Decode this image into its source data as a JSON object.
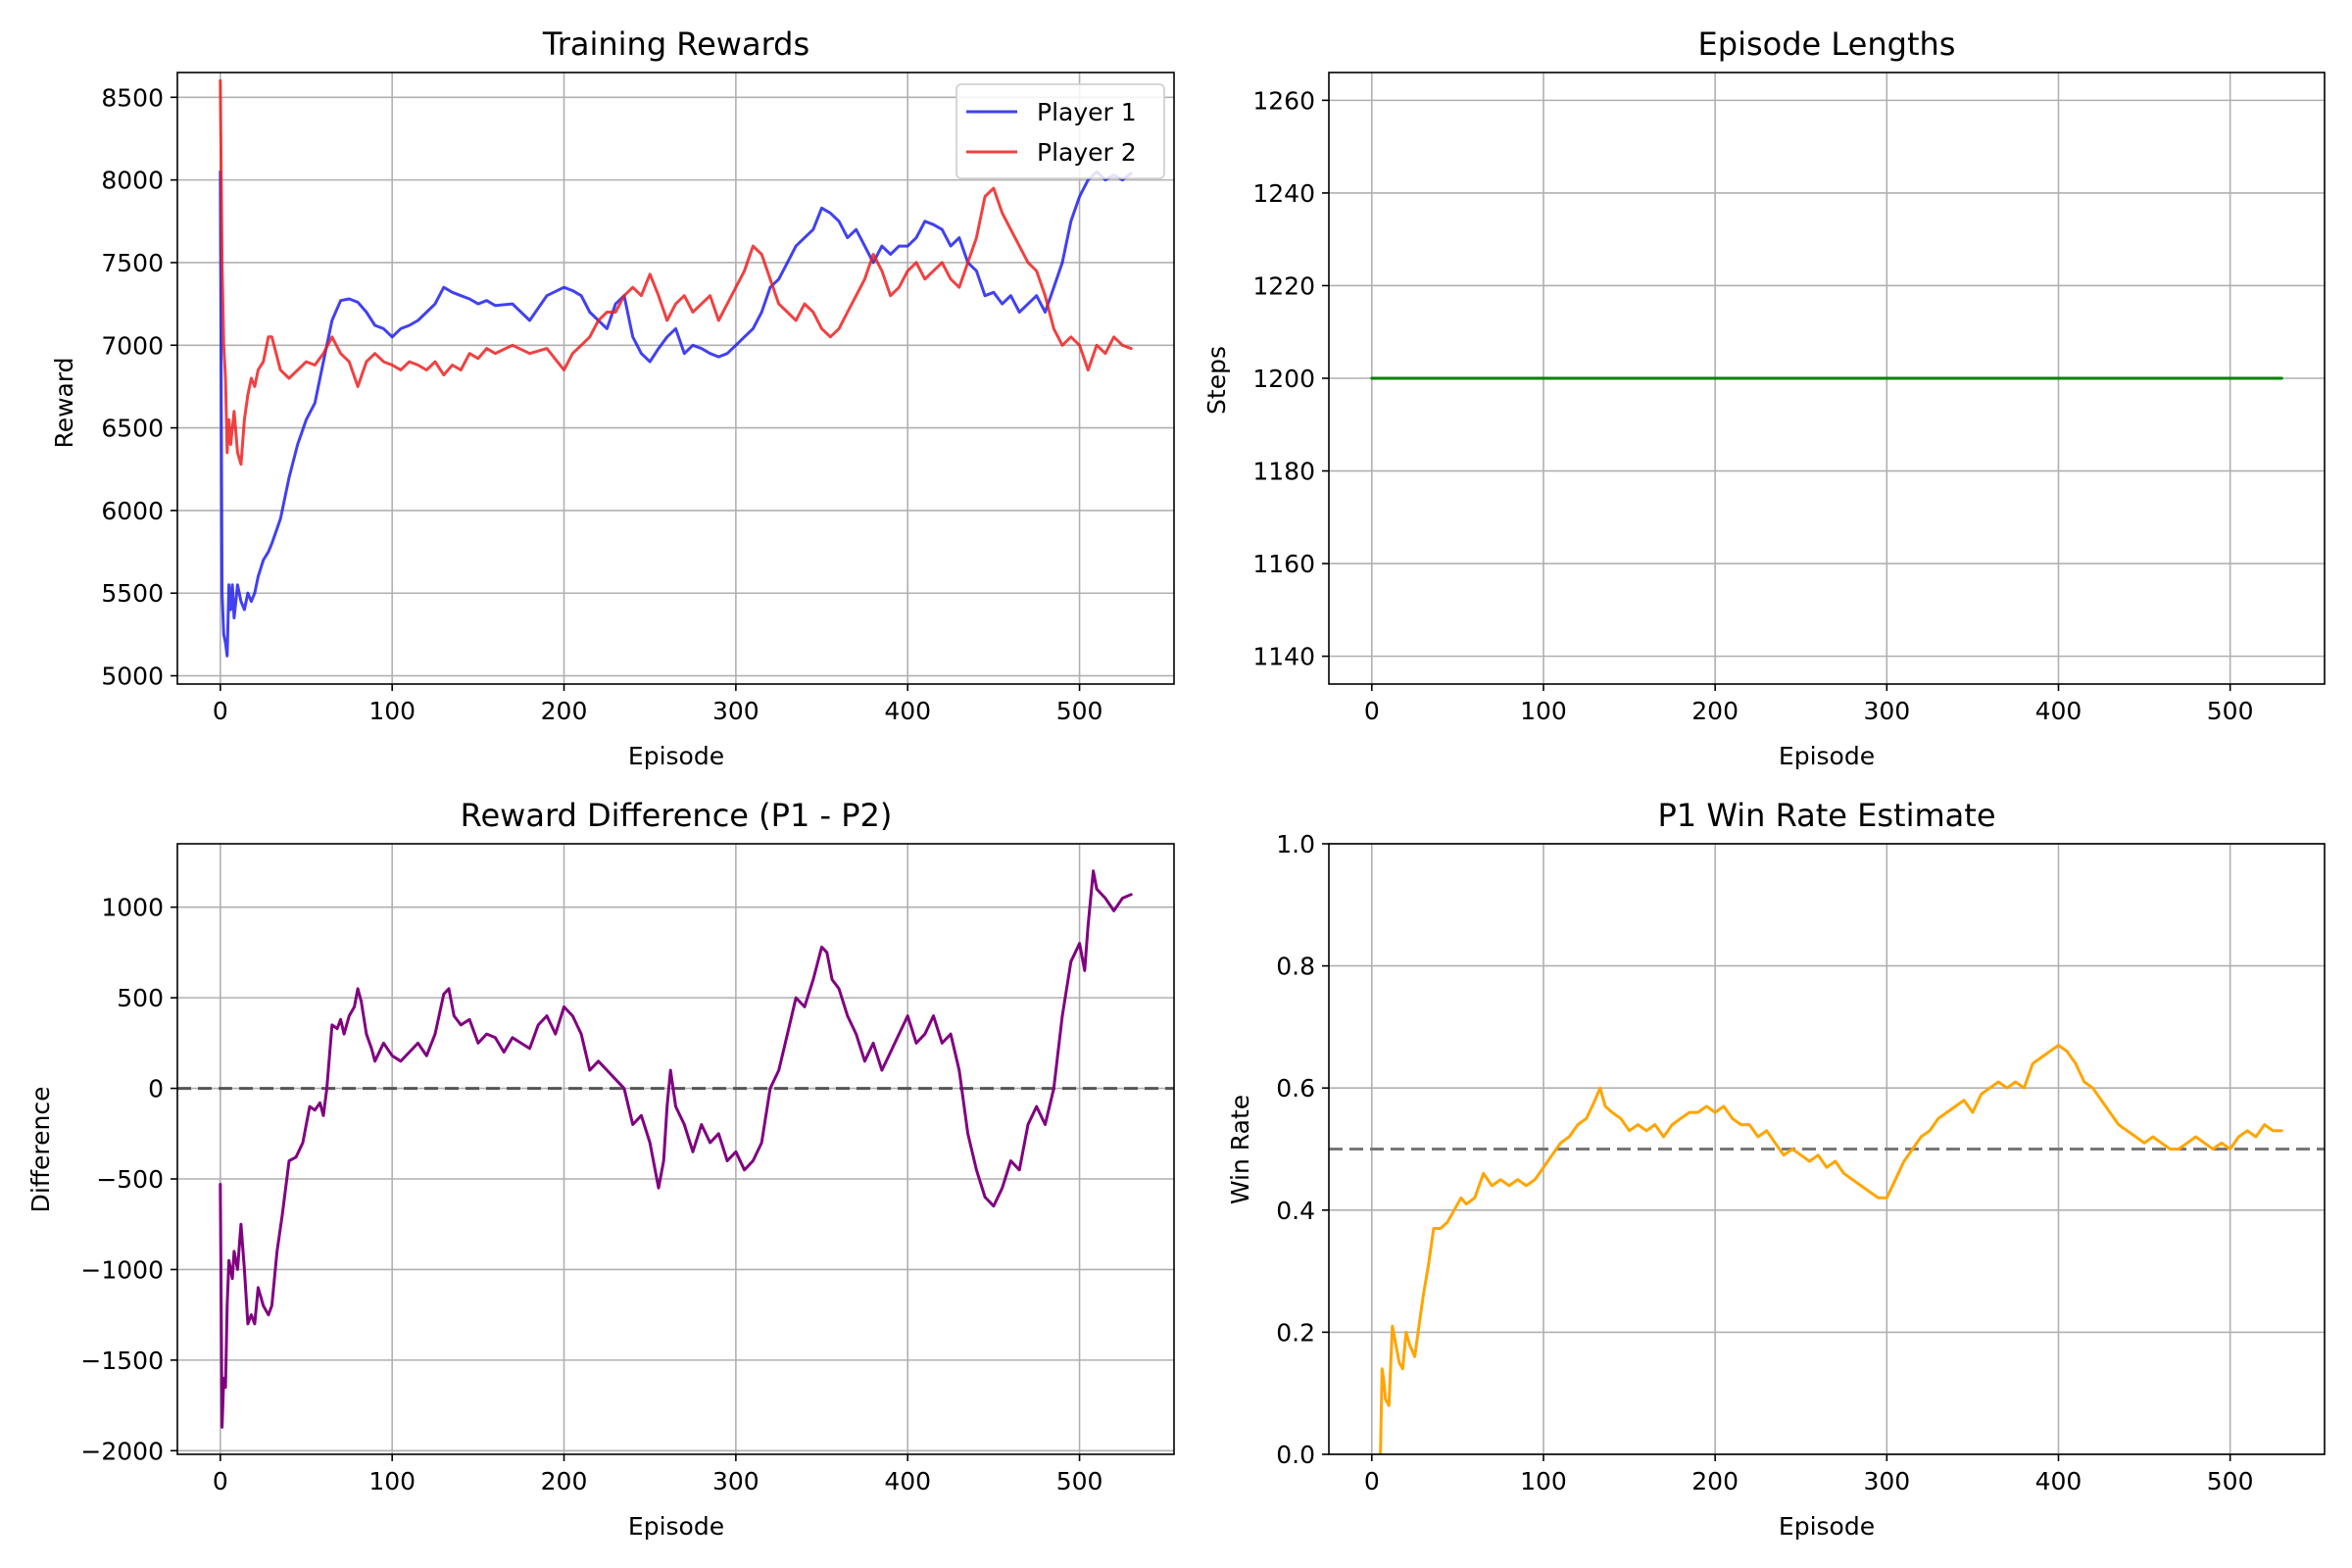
{
  "figure": {
    "background": "#ffffff",
    "grid_color": "#b0b0b0"
  },
  "chart_data": [
    {
      "type": "line",
      "title": "Training Rewards",
      "xlabel": "Episode",
      "ylabel": "Reward",
      "xlim": [
        -25,
        555
      ],
      "ylim": [
        4950,
        8650
      ],
      "xticks": [
        0,
        100,
        200,
        300,
        400,
        500
      ],
      "yticks": [
        5000,
        5500,
        6000,
        6500,
        7000,
        7500,
        8000,
        8500
      ],
      "grid": true,
      "legend": "top-right",
      "series": [
        {
          "name": "Player 1",
          "color": "#2020ee",
          "x": [
            0,
            1,
            2,
            3,
            4,
            5,
            6,
            7,
            8,
            10,
            12,
            14,
            16,
            18,
            20,
            22,
            25,
            28,
            30,
            35,
            40,
            45,
            50,
            55,
            60,
            65,
            70,
            75,
            80,
            85,
            90,
            95,
            100,
            105,
            110,
            115,
            120,
            125,
            130,
            135,
            140,
            145,
            150,
            155,
            160,
            170,
            180,
            190,
            200,
            205,
            210,
            215,
            220,
            225,
            230,
            235,
            240,
            245,
            250,
            255,
            260,
            265,
            270,
            275,
            280,
            285,
            290,
            295,
            300,
            305,
            310,
            315,
            320,
            325,
            330,
            335,
            340,
            345,
            350,
            355,
            360,
            365,
            370,
            375,
            380,
            385,
            390,
            395,
            400,
            405,
            410,
            415,
            420,
            425,
            430,
            435,
            440,
            445,
            450,
            455,
            460,
            465,
            470,
            475,
            480,
            485,
            490,
            495,
            500,
            505,
            510,
            515,
            520,
            525,
            530
          ],
          "values": [
            8050,
            5500,
            5250,
            5200,
            5120,
            5550,
            5400,
            5550,
            5350,
            5550,
            5450,
            5400,
            5500,
            5450,
            5500,
            5600,
            5700,
            5750,
            5800,
            5950,
            6200,
            6400,
            6550,
            6650,
            6900,
            7150,
            7270,
            7280,
            7260,
            7200,
            7120,
            7100,
            7050,
            7100,
            7120,
            7150,
            7200,
            7250,
            7350,
            7320,
            7300,
            7280,
            7250,
            7270,
            7240,
            7250,
            7150,
            7300,
            7350,
            7330,
            7300,
            7200,
            7150,
            7100,
            7250,
            7300,
            7050,
            6950,
            6900,
            6980,
            7050,
            7100,
            6950,
            7000,
            6980,
            6950,
            6930,
            6950,
            7000,
            7050,
            7100,
            7200,
            7350,
            7400,
            7500,
            7600,
            7650,
            7700,
            7830,
            7800,
            7750,
            7650,
            7700,
            7600,
            7500,
            7600,
            7550,
            7600,
            7600,
            7650,
            7750,
            7730,
            7700,
            7600,
            7650,
            7500,
            7450,
            7300,
            7320,
            7250,
            7300,
            7200,
            7250,
            7300,
            7200,
            7350,
            7500,
            7750,
            7900,
            8000,
            8050,
            8000,
            8030,
            8000,
            8040
          ]
        },
        {
          "name": "Player 2",
          "color": "#ee2020",
          "x": [
            0,
            1,
            2,
            3,
            4,
            5,
            6,
            8,
            10,
            12,
            14,
            16,
            18,
            20,
            22,
            25,
            28,
            30,
            35,
            40,
            45,
            50,
            55,
            60,
            65,
            70,
            75,
            80,
            85,
            90,
            95,
            100,
            105,
            110,
            115,
            120,
            125,
            130,
            135,
            140,
            145,
            150,
            155,
            160,
            170,
            180,
            190,
            200,
            205,
            210,
            215,
            220,
            225,
            230,
            235,
            240,
            245,
            250,
            255,
            260,
            265,
            270,
            275,
            280,
            285,
            290,
            295,
            300,
            305,
            310,
            315,
            320,
            325,
            330,
            335,
            340,
            345,
            350,
            355,
            360,
            365,
            370,
            375,
            380,
            385,
            390,
            395,
            400,
            405,
            410,
            415,
            420,
            425,
            430,
            435,
            440,
            445,
            450,
            455,
            460,
            465,
            470,
            475,
            480,
            485,
            490,
            495,
            500,
            505,
            510,
            515,
            520,
            525,
            530
          ],
          "values": [
            8600,
            7500,
            7000,
            6800,
            6350,
            6550,
            6400,
            6600,
            6350,
            6280,
            6550,
            6700,
            6800,
            6750,
            6850,
            6900,
            7050,
            7050,
            6850,
            6800,
            6850,
            6900,
            6880,
            6950,
            7050,
            6950,
            6900,
            6750,
            6900,
            6950,
            6900,
            6880,
            6850,
            6900,
            6880,
            6850,
            6900,
            6820,
            6880,
            6850,
            6950,
            6920,
            6980,
            6950,
            7000,
            6950,
            6980,
            6850,
            6950,
            7000,
            7050,
            7150,
            7200,
            7200,
            7300,
            7350,
            7300,
            7430,
            7300,
            7150,
            7250,
            7300,
            7200,
            7250,
            7300,
            7150,
            7250,
            7350,
            7450,
            7600,
            7550,
            7400,
            7250,
            7200,
            7150,
            7250,
            7200,
            7100,
            7050,
            7100,
            7200,
            7300,
            7400,
            7550,
            7450,
            7300,
            7350,
            7450,
            7500,
            7400,
            7450,
            7500,
            7400,
            7350,
            7500,
            7650,
            7900,
            7950,
            7800,
            7700,
            7600,
            7500,
            7450,
            7300,
            7100,
            7000,
            7050,
            7000,
            6850,
            7000,
            6950,
            7050,
            7000,
            6980
          ]
        }
      ]
    },
    {
      "type": "line",
      "title": "Episode Lengths",
      "xlabel": "Episode",
      "ylabel": "Steps",
      "xlim": [
        -25,
        555
      ],
      "ylim": [
        1134,
        1266
      ],
      "xticks": [
        0,
        100,
        200,
        300,
        400,
        500
      ],
      "yticks": [
        1140,
        1160,
        1180,
        1200,
        1220,
        1240,
        1260
      ],
      "grid": true,
      "series": [
        {
          "color": "#008000",
          "x": [
            0,
            530
          ],
          "values": [
            1200,
            1200
          ]
        }
      ]
    },
    {
      "type": "line",
      "title": "Reward Difference (P1 - P2)",
      "xlabel": "Episode",
      "ylabel": "Difference",
      "xlim": [
        -25,
        555
      ],
      "ylim": [
        -2020,
        1350
      ],
      "xticks": [
        0,
        100,
        200,
        300,
        400,
        500
      ],
      "yticks": [
        -2000,
        -1500,
        -1000,
        -500,
        0,
        500,
        1000
      ],
      "ytick_labels": [
        "−2000",
        "−1500",
        "−1000",
        "−500",
        "0",
        "500",
        "1000"
      ],
      "grid": true,
      "reference_line": {
        "y": 0,
        "style": "dashed",
        "color": "#555555"
      },
      "series": [
        {
          "color": "#800080",
          "x": [
            0,
            1,
            2,
            3,
            4,
            5,
            6,
            7,
            8,
            10,
            12,
            14,
            16,
            18,
            20,
            22,
            25,
            28,
            30,
            33,
            36,
            40,
            44,
            48,
            52,
            55,
            58,
            60,
            62,
            65,
            68,
            70,
            72,
            75,
            78,
            80,
            82,
            85,
            88,
            90,
            95,
            100,
            105,
            110,
            115,
            120,
            125,
            130,
            133,
            136,
            140,
            145,
            150,
            155,
            160,
            165,
            170,
            175,
            180,
            185,
            190,
            195,
            200,
            205,
            210,
            215,
            220,
            225,
            230,
            235,
            240,
            245,
            250,
            255,
            258,
            260,
            262,
            265,
            270,
            275,
            280,
            285,
            290,
            295,
            300,
            305,
            310,
            315,
            320,
            325,
            330,
            335,
            340,
            345,
            350,
            353,
            356,
            360,
            365,
            370,
            375,
            380,
            385,
            390,
            395,
            400,
            405,
            410,
            415,
            420,
            425,
            430,
            435,
            440,
            445,
            450,
            455,
            460,
            465,
            470,
            475,
            480,
            485,
            490,
            495,
            500,
            503,
            505,
            508,
            510,
            515,
            520,
            525,
            530
          ],
          "values": [
            -530,
            -1870,
            -1600,
            -1650,
            -1200,
            -950,
            -1000,
            -1050,
            -900,
            -1000,
            -750,
            -1000,
            -1300,
            -1250,
            -1300,
            -1100,
            -1200,
            -1250,
            -1200,
            -900,
            -700,
            -400,
            -380,
            -300,
            -100,
            -120,
            -80,
            -150,
            0,
            350,
            330,
            380,
            300,
            400,
            450,
            550,
            480,
            300,
            220,
            150,
            250,
            180,
            150,
            200,
            250,
            180,
            300,
            520,
            550,
            400,
            350,
            380,
            250,
            300,
            280,
            200,
            280,
            250,
            220,
            350,
            400,
            300,
            450,
            400,
            300,
            100,
            150,
            100,
            50,
            0,
            -200,
            -150,
            -300,
            -550,
            -400,
            -100,
            100,
            -100,
            -200,
            -350,
            -200,
            -300,
            -250,
            -400,
            -350,
            -450,
            -400,
            -300,
            0,
            100,
            300,
            500,
            450,
            600,
            780,
            750,
            600,
            550,
            400,
            300,
            150,
            250,
            100,
            200,
            300,
            400,
            250,
            300,
            400,
            250,
            300,
            100,
            -250,
            -450,
            -600,
            -650,
            -550,
            -400,
            -450,
            -200,
            -100,
            -200,
            0,
            400,
            700,
            800,
            650,
            900,
            1200,
            1100,
            1050,
            980,
            1050,
            1070
          ]
        }
      ]
    },
    {
      "type": "line",
      "title": "P1 Win Rate Estimate",
      "xlabel": "Episode",
      "ylabel": "Win Rate",
      "xlim": [
        -25,
        555
      ],
      "ylim": [
        0.0,
        1.0
      ],
      "xticks": [
        0,
        100,
        200,
        300,
        400,
        500
      ],
      "yticks": [
        0.0,
        0.2,
        0.4,
        0.6,
        0.8,
        1.0
      ],
      "ytick_labels": [
        "0.0",
        "0.2",
        "0.4",
        "0.6",
        "0.8",
        "1.0"
      ],
      "grid": true,
      "reference_line": {
        "y": 0.5,
        "style": "dashed",
        "color": "#777777"
      },
      "series": [
        {
          "color": "#ffa500",
          "x": [
            5,
            6,
            7,
            8,
            10,
            12,
            14,
            16,
            18,
            20,
            22,
            25,
            28,
            30,
            33,
            36,
            40,
            44,
            48,
            52,
            55,
            60,
            65,
            70,
            75,
            80,
            85,
            90,
            95,
            100,
            105,
            110,
            115,
            120,
            125,
            130,
            133,
            136,
            140,
            145,
            150,
            155,
            160,
            165,
            170,
            175,
            180,
            185,
            190,
            195,
            200,
            205,
            210,
            215,
            220,
            225,
            230,
            235,
            240,
            245,
            250,
            255,
            260,
            265,
            270,
            275,
            280,
            285,
            290,
            295,
            300,
            305,
            310,
            315,
            320,
            325,
            330,
            335,
            340,
            345,
            350,
            355,
            360,
            365,
            370,
            375,
            380,
            385,
            390,
            395,
            400,
            405,
            410,
            415,
            420,
            425,
            430,
            435,
            440,
            445,
            450,
            455,
            460,
            465,
            470,
            475,
            480,
            485,
            490,
            495,
            500,
            505,
            510,
            515,
            520,
            525,
            530
          ],
          "values": [
            0.0,
            0.14,
            0.12,
            0.09,
            0.08,
            0.21,
            0.18,
            0.15,
            0.14,
            0.2,
            0.18,
            0.16,
            0.22,
            0.26,
            0.31,
            0.37,
            0.37,
            0.38,
            0.4,
            0.42,
            0.41,
            0.42,
            0.46,
            0.44,
            0.45,
            0.44,
            0.45,
            0.44,
            0.45,
            0.47,
            0.49,
            0.51,
            0.52,
            0.54,
            0.55,
            0.58,
            0.6,
            0.57,
            0.56,
            0.55,
            0.53,
            0.54,
            0.53,
            0.54,
            0.52,
            0.54,
            0.55,
            0.56,
            0.56,
            0.57,
            0.56,
            0.57,
            0.55,
            0.54,
            0.54,
            0.52,
            0.53,
            0.51,
            0.49,
            0.5,
            0.49,
            0.48,
            0.49,
            0.47,
            0.48,
            0.46,
            0.45,
            0.44,
            0.43,
            0.42,
            0.42,
            0.45,
            0.48,
            0.5,
            0.52,
            0.53,
            0.55,
            0.56,
            0.57,
            0.58,
            0.56,
            0.59,
            0.6,
            0.61,
            0.6,
            0.61,
            0.6,
            0.64,
            0.65,
            0.66,
            0.67,
            0.66,
            0.64,
            0.61,
            0.6,
            0.58,
            0.56,
            0.54,
            0.53,
            0.52,
            0.51,
            0.52,
            0.51,
            0.5,
            0.5,
            0.51,
            0.52,
            0.51,
            0.5,
            0.51,
            0.5,
            0.52,
            0.53,
            0.52,
            0.54,
            0.53,
            0.53
          ]
        }
      ]
    }
  ]
}
